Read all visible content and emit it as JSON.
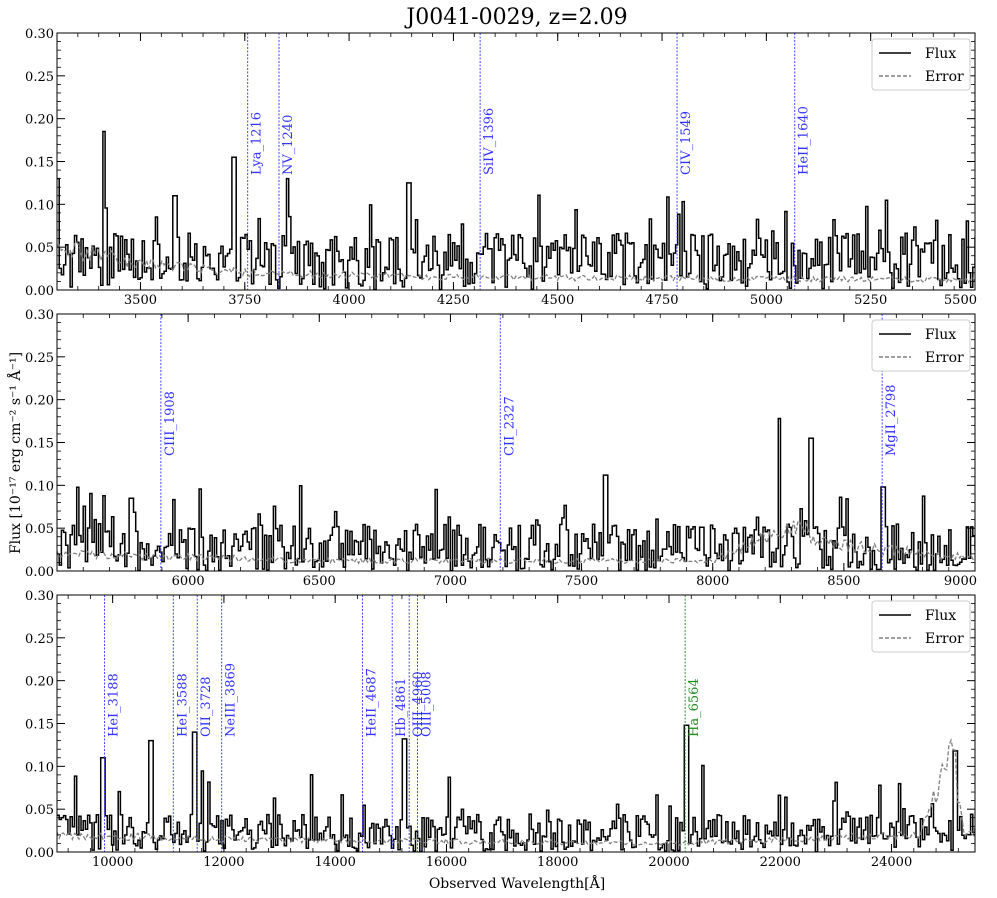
{
  "title": "J0041-0029, z=2.09",
  "ylabel": "Flux [10⁻¹⁷ erg cm⁻² s⁻¹ Å⁻¹]",
  "xlabel": "Observed Wavelength[Å]",
  "legend": {
    "flux": "Flux",
    "error": "Error"
  },
  "colors": {
    "flux": "#000000",
    "error": "#808080",
    "line_blue": "#3333ff",
    "line_green": "#228b22"
  },
  "chart_data": [
    {
      "type": "line",
      "xlim": [
        3300,
        5500
      ],
      "ylim": [
        0,
        0.3
      ],
      "xticks": [
        3500,
        3750,
        4000,
        4250,
        4500,
        4750,
        5000,
        5250,
        5500
      ],
      "xtick_labels": [
        "3500",
        "3750",
        "4000",
        "4250",
        "4500",
        "4750",
        "5000",
        "5250",
        "5500"
      ],
      "yticks": [
        0,
        0.05,
        0.1,
        0.15,
        0.2,
        0.25,
        0.3
      ],
      "ytick_labels": [
        "0.00",
        "0.05",
        "0.10",
        "0.15",
        "0.20",
        "0.25",
        "0.30"
      ],
      "lines": [
        {
          "label": "Lya_1216",
          "x": 3757,
          "color": "blue"
        },
        {
          "label": "NV_1240",
          "x": 3832,
          "color": "blue"
        },
        {
          "label": "SiIV_1396",
          "x": 4314,
          "color": "blue"
        },
        {
          "label": "CIV_1549",
          "x": 4786,
          "color": "blue"
        },
        {
          "label": "HeII_1640",
          "x": 5068,
          "color": "blue"
        }
      ],
      "flux_baseline": 0.03,
      "error_profile": [
        [
          3300,
          0.05
        ],
        [
          3500,
          0.03
        ],
        [
          3800,
          0.02
        ],
        [
          4200,
          0.015
        ],
        [
          5500,
          0.012
        ]
      ],
      "spikes": [
        [
          3300,
          0.13
        ],
        [
          3410,
          0.185
        ],
        [
          3720,
          0.155
        ],
        [
          3850,
          0.13
        ],
        [
          4140,
          0.125
        ],
        [
          3580,
          0.11
        ]
      ]
    },
    {
      "type": "line",
      "xlim": [
        5500,
        9000
      ],
      "ylim": [
        0,
        0.3
      ],
      "xticks": [
        6000,
        6500,
        7000,
        7500,
        8000,
        8500,
        9000
      ],
      "xtick_labels": [
        "6000",
        "6500",
        "7000",
        "7500",
        "8000",
        "8500",
        "9000"
      ],
      "yticks": [
        0,
        0.05,
        0.1,
        0.15,
        0.2,
        0.25,
        0.3
      ],
      "ytick_labels": [
        "0.00",
        "0.05",
        "0.10",
        "0.15",
        "0.20",
        "0.25",
        "0.30"
      ],
      "lines": [
        {
          "label": "CIII_1908",
          "x": 5896,
          "color": "blue"
        },
        {
          "label": "CII_2327",
          "x": 7190,
          "color": "blue"
        },
        {
          "label": "MgII_2798",
          "x": 8646,
          "color": "blue"
        }
      ],
      "flux_baseline": 0.025,
      "error_profile": [
        [
          5500,
          0.02
        ],
        [
          6500,
          0.012
        ],
        [
          8000,
          0.012
        ],
        [
          8300,
          0.05
        ],
        [
          8500,
          0.03
        ],
        [
          9000,
          0.015
        ]
      ],
      "spikes": [
        [
          8250,
          0.178
        ],
        [
          8370,
          0.155
        ],
        [
          8646,
          0.098
        ],
        [
          7590,
          0.112
        ],
        [
          5780,
          0.085
        ]
      ]
    },
    {
      "type": "line",
      "xlim": [
        9000,
        25500
      ],
      "ylim": [
        0,
        0.3
      ],
      "xticks": [
        10000,
        12000,
        14000,
        16000,
        18000,
        20000,
        22000,
        24000
      ],
      "xtick_labels": [
        "10000",
        "12000",
        "14000",
        "16000",
        "18000",
        "20000",
        "22000",
        "24000"
      ],
      "yticks": [
        0,
        0.05,
        0.1,
        0.15,
        0.2,
        0.25,
        0.3
      ],
      "ytick_labels": [
        "0.00",
        "0.05",
        "0.10",
        "0.15",
        "0.20",
        "0.25",
        "0.30"
      ],
      "lines": [
        {
          "label": "HeI_3188",
          "x": 9855,
          "color": "blue"
        },
        {
          "label": "HeI_3588",
          "x": 11090,
          "color": "blue"
        },
        {
          "label": "OII_3728",
          "x": 11520,
          "color": "blue"
        },
        {
          "label": "NeIII_3869",
          "x": 11960,
          "color": "blue"
        },
        {
          "label": "HeII_4687",
          "x": 14490,
          "color": "blue"
        },
        {
          "label": "Hb_4861",
          "x": 15025,
          "color": "blue"
        },
        {
          "label": "OIII_4960",
          "x": 15330,
          "color": "blue"
        },
        {
          "label": "OIII_5008",
          "x": 15480,
          "color": "blue"
        },
        {
          "label": "Ha_6564",
          "x": 20290,
          "color": "green"
        }
      ],
      "flux_baseline": 0.02,
      "error_profile": [
        [
          9000,
          0.02
        ],
        [
          12000,
          0.015
        ],
        [
          20000,
          0.01
        ],
        [
          24500,
          0.02
        ],
        [
          25100,
          0.12
        ],
        [
          25300,
          0.02
        ]
      ],
      "spikes": [
        [
          20290,
          0.148
        ],
        [
          15230,
          0.132
        ],
        [
          11450,
          0.14
        ],
        [
          9820,
          0.11
        ],
        [
          10680,
          0.13
        ],
        [
          25120,
          0.118
        ]
      ]
    }
  ]
}
